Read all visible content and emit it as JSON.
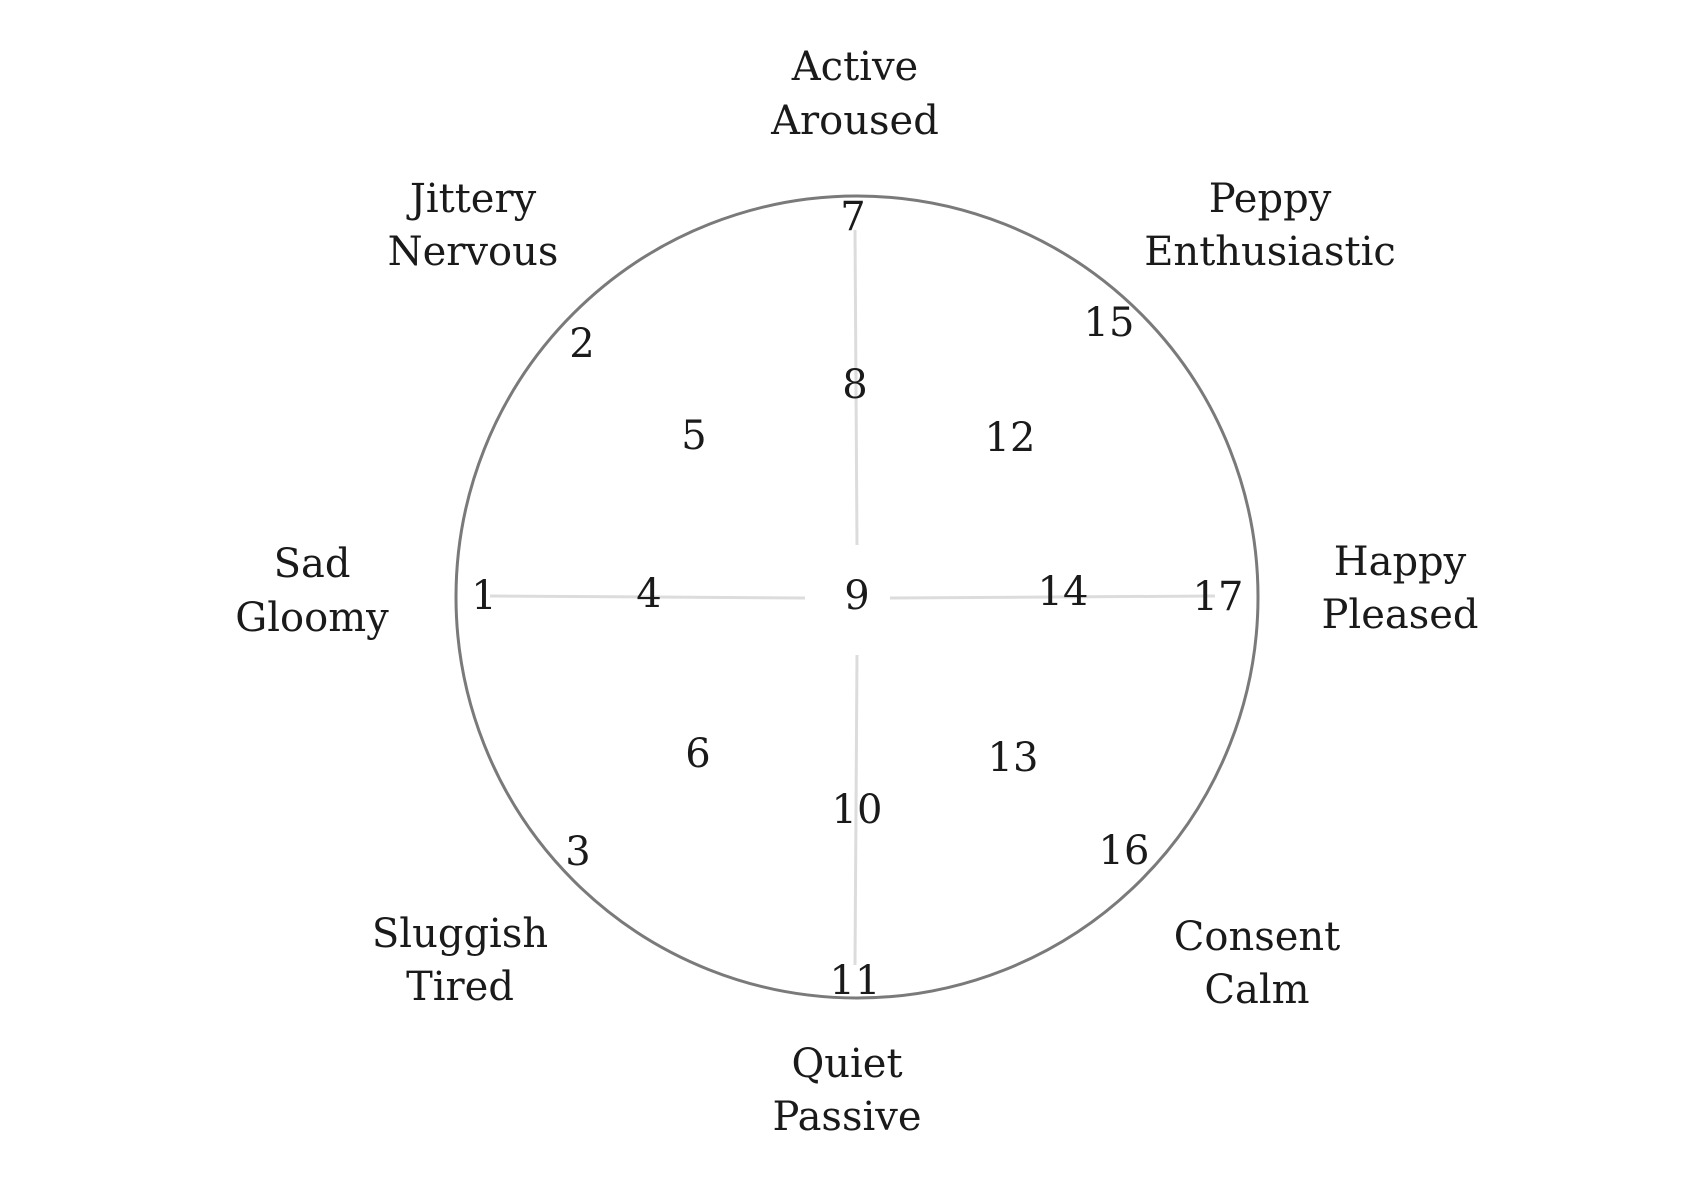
{
  "diagram": {
    "outer_labels": {
      "top": [
        "Active",
        "Aroused"
      ],
      "top_right": [
        "Peppy",
        "Enthusiastic"
      ],
      "right": [
        "Happy",
        "Pleased"
      ],
      "bottom_right": [
        "Consent",
        "Calm"
      ],
      "bottom": [
        "Quiet",
        "Passive"
      ],
      "bottom_left": [
        "Sluggish",
        "Tired"
      ],
      "left": [
        "Sad",
        "Gloomy"
      ],
      "top_left": [
        "Jittery",
        "Nervous"
      ]
    },
    "numbers": {
      "n1": "1",
      "n2": "2",
      "n3": "3",
      "n4": "4",
      "n5": "5",
      "n6": "6",
      "n7": "7",
      "n8": "8",
      "n9": "9",
      "n10": "10",
      "n11": "11",
      "n12": "12",
      "n13": "13",
      "n14": "14",
      "n15": "15",
      "n16": "16",
      "n17": "17"
    },
    "colors": {
      "circle": "#7a7a7a",
      "axis": "#dcdcdc",
      "text": "#1a1a1a"
    }
  }
}
